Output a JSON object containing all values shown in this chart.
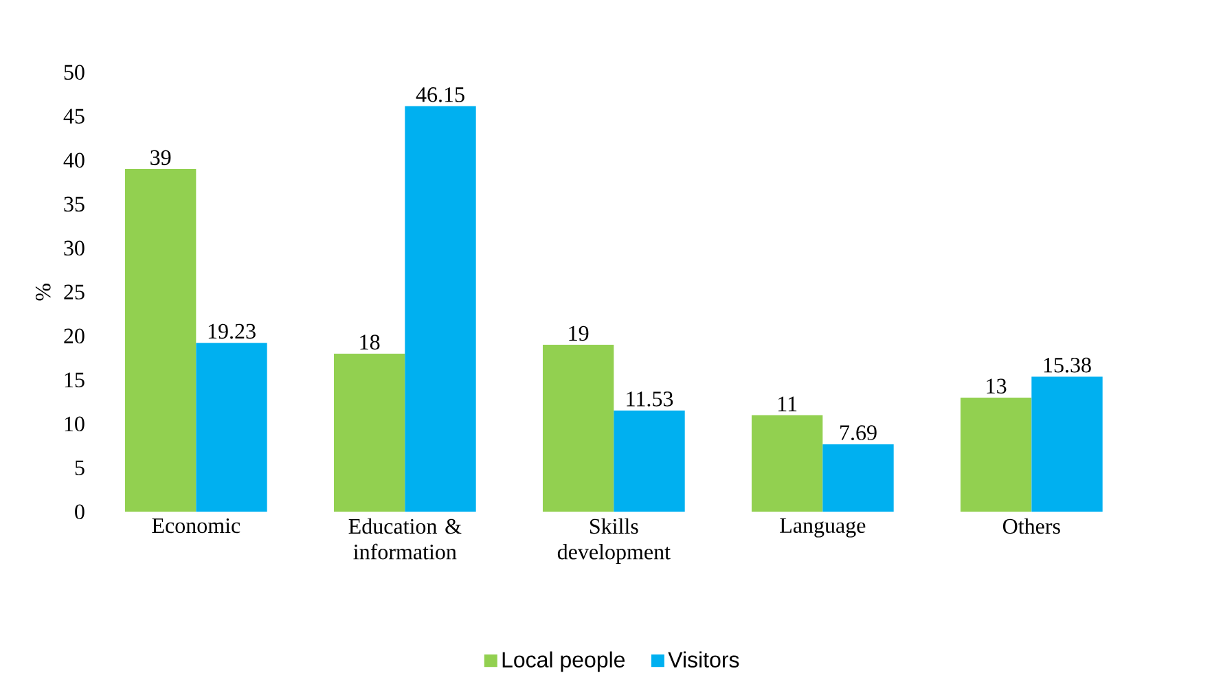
{
  "chart_data": {
    "type": "bar",
    "ylabel": "%",
    "categories": [
      "Economic",
      "Education & information",
      "Skills development",
      "Language",
      "Others"
    ],
    "series": [
      {
        "name": "Local people",
        "color": "#92d050",
        "values": [
          39,
          18,
          19,
          11,
          13
        ]
      },
      {
        "name": "Visitors",
        "color": "#00b0f0",
        "values": [
          19.23,
          46.15,
          11.53,
          7.69,
          15.38
        ]
      }
    ],
    "ylim": [
      0,
      50
    ],
    "yticks": [
      0,
      5,
      10,
      15,
      20,
      25,
      30,
      35,
      40,
      45,
      50
    ],
    "data_labels": true,
    "legend": "bottom",
    "grid": false
  }
}
